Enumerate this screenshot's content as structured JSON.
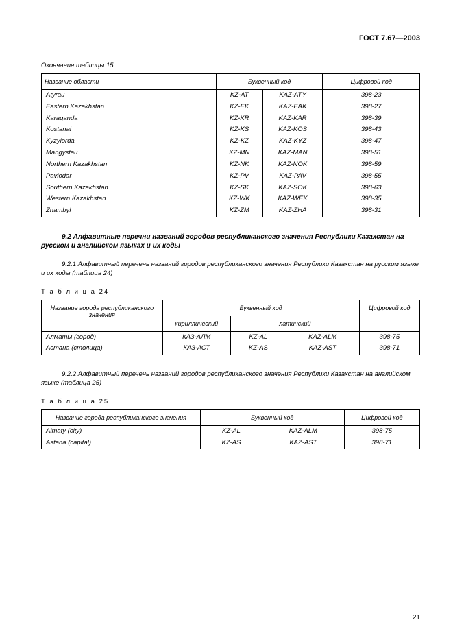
{
  "doc_header": "ГОСТ 7.67—2003",
  "table15": {
    "caption": "Окончание таблицы 15",
    "headers": {
      "name": "Название области",
      "letter_code": "Буквенный код",
      "num_code": "Цифровой код"
    },
    "rows": [
      {
        "name": "Atyrau",
        "a": "KZ-AT",
        "b": "KAZ-ATY",
        "n": "398-23"
      },
      {
        "name": "Eastern Kazakhstan",
        "a": "KZ-EK",
        "b": "KAZ-EAK",
        "n": "398-27"
      },
      {
        "name": "Karaganda",
        "a": "KZ-KR",
        "b": "KAZ-KAR",
        "n": "398-39"
      },
      {
        "name": "Kostanai",
        "a": "KZ-KS",
        "b": "KAZ-KOS",
        "n": "398-43"
      },
      {
        "name": "Kyzylorda",
        "a": "KZ-KZ",
        "b": "KAZ-KYZ",
        "n": "398-47"
      },
      {
        "name": "Mangystau",
        "a": "KZ-MN",
        "b": "KAZ-MAN",
        "n": "398-51"
      },
      {
        "name": "Northern Kazakhstan",
        "a": "KZ-NK",
        "b": "KAZ-NOK",
        "n": "398-59"
      },
      {
        "name": "Pavlodar",
        "a": "KZ-PV",
        "b": "KAZ-PAV",
        "n": "398-55"
      },
      {
        "name": "Southern Kazakhstan",
        "a": "KZ-SK",
        "b": "KAZ-SOK",
        "n": "398-63"
      },
      {
        "name": "Western Kazakhstan",
        "a": "KZ-WK",
        "b": "KAZ-WEK",
        "n": "398-35"
      },
      {
        "name": "Zhambyl",
        "a": "KZ-ZM",
        "b": "KAZ-ZHA",
        "n": "398-31"
      }
    ]
  },
  "section92": {
    "title": "9.2 Алфавитные перечни названий городов республиканского значения Республики Казахстан на русском и английском языках и их коды",
    "para921": "9.2.1 Алфавитный перечень названий городов республиканского значения Республики Казахстан на русском языке и их коды (таблица 24)",
    "label24": "Т а б л и ц а  24",
    "table24": {
      "headers": {
        "name": "Название города республиканского значения",
        "letter_code": "Буквенный код",
        "cyrillic": "кириллический",
        "latin": "латинский",
        "num_code": "Цифровой код"
      },
      "rows": [
        {
          "name": "Алматы (город)",
          "cyr": "КАЗ-АЛМ",
          "la": "KZ-AL",
          "lb": "KAZ-ALM",
          "n": "398-75"
        },
        {
          "name": "Астана (столица)",
          "cyr": "КАЗ-АСТ",
          "la": "KZ-AS",
          "lb": "KAZ-AST",
          "n": "398-71"
        }
      ]
    },
    "para922": "9.2.2 Алфавитный перечень названий городов республиканского значения Республики Казахстан на английском языке (таблица 25)",
    "label25": "Т а б л и ц а  25",
    "table25": {
      "headers": {
        "name": "Название города республиканского значения",
        "letter_code": "Буквенный код",
        "num_code": "Цифровой код"
      },
      "rows": [
        {
          "name": "Almaty (city)",
          "a": "KZ-AL",
          "b": "KAZ-ALM",
          "n": "398-75"
        },
        {
          "name": "Astana (capital)",
          "a": "KZ-AS",
          "b": "KAZ-AST",
          "n": "398-71"
        }
      ]
    }
  },
  "page_num": "21"
}
